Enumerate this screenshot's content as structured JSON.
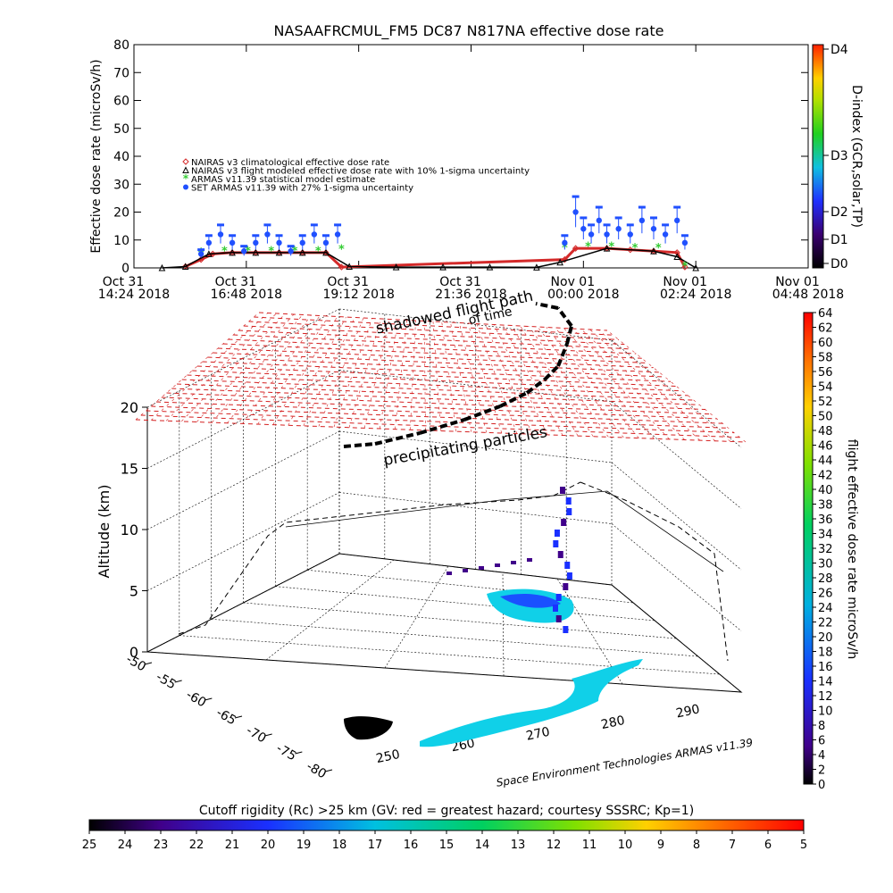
{
  "chart_data": [
    {
      "type": "scatter",
      "title": "NASAAFRCMUL_FM5 DC87 N817NA effective dose rate",
      "ylabel": "Effective dose rate (microSv/h)",
      "ylim": [
        0,
        80
      ],
      "yticks": [
        "0",
        "10",
        "20",
        "30",
        "40",
        "50",
        "60",
        "70",
        "80"
      ],
      "xticks": [
        {
          "line1": "Oct 31",
          "line2": "14:24 2018"
        },
        {
          "line1": "Oct 31",
          "line2": "16:48 2018"
        },
        {
          "line1": "Oct 31",
          "line2": "19:12 2018"
        },
        {
          "line1": "Oct 31",
          "line2": "21:36 2018"
        },
        {
          "line1": "Nov 01",
          "line2": "00:00 2018"
        },
        {
          "line1": "Nov 01",
          "line2": "02:24 2018"
        },
        {
          "line1": "Nov 01",
          "line2": "04:48 2018"
        }
      ],
      "legend_placement": "upper-left",
      "series": [
        {
          "name": "NAIRAS v3 climatological effective dose rate",
          "color": "#d42a2a",
          "marker": "diamond",
          "x": [
            "15:30",
            "15:50",
            "16:05",
            "16:30",
            "17:00",
            "17:30",
            "18:00",
            "18:30",
            "18:50",
            "23:36",
            "23:50",
            "00:30",
            "01:00",
            "01:30",
            "02:00",
            "02:10"
          ],
          "y": [
            0.5,
            3,
            5,
            5.5,
            5.5,
            5.5,
            5.5,
            5.5,
            0.3,
            3,
            7,
            7,
            6.5,
            6,
            5.5,
            0.3
          ]
        },
        {
          "name": "NAIRAS v3 flight modeled effective dose rate with 10% 1-sigma uncertainty",
          "color": "#000000",
          "marker": "triangle",
          "x": [
            "15:00",
            "15:30",
            "16:00",
            "16:30",
            "17:00",
            "17:30",
            "18:00",
            "18:30",
            "19:00",
            "20:00",
            "21:00",
            "22:00",
            "23:00",
            "23:30",
            "00:30",
            "01:30",
            "02:00",
            "02:24"
          ],
          "y": [
            0,
            0.5,
            5,
            5.5,
            5.5,
            5.5,
            5.5,
            5.5,
            0.5,
            0.3,
            0.3,
            0.3,
            0.2,
            2,
            7,
            6,
            4,
            0
          ]
        },
        {
          "name": "ARMAS v11.39 statistical model estimate",
          "color": "#33cc33",
          "marker": "asterisk",
          "x": [
            "15:50",
            "16:20",
            "16:50",
            "17:20",
            "17:50",
            "18:20",
            "18:50",
            "23:36",
            "00:06",
            "00:36",
            "01:06",
            "01:36",
            "02:10"
          ],
          "y": [
            5.5,
            6,
            6,
            6,
            6,
            6,
            6.5,
            7,
            7.5,
            7.5,
            7,
            7,
            0.5
          ]
        },
        {
          "name": "SET ARMAS v11.39 with 27% 1-sigma uncertainty",
          "color": "#2050ff",
          "marker": "dot",
          "x": [
            "15:50",
            "16:00",
            "16:15",
            "16:30",
            "16:45",
            "17:00",
            "17:15",
            "17:30",
            "17:45",
            "18:00",
            "18:15",
            "18:30",
            "18:45",
            "23:36",
            "23:50",
            "00:00",
            "00:10",
            "00:20",
            "00:30",
            "00:45",
            "01:00",
            "01:15",
            "01:30",
            "01:45",
            "02:00",
            "02:10"
          ],
          "y": [
            5,
            9,
            12,
            9,
            6,
            9,
            12,
            9,
            6,
            9,
            12,
            9,
            12,
            9,
            20,
            14,
            12,
            17,
            12,
            14,
            12,
            17,
            14,
            12,
            17,
            9
          ]
        }
      ],
      "colorbar": {
        "label": "D-index (GCR,solar,TP)",
        "ticks": [
          "D4",
          "D3",
          "D2",
          "D1",
          "D0"
        ]
      }
    },
    {
      "type": "scatter",
      "kind": "3d-flight-track",
      "zlabel": "Altitude (km)",
      "zticks": [
        "0",
        "5",
        "10",
        "15",
        "20"
      ],
      "yticks": [
        "-80",
        "-75",
        "-70",
        "-65",
        "-60",
        "-55",
        "-50"
      ],
      "xticks": [
        "250",
        "260",
        "270",
        "280",
        "290"
      ],
      "annotations": [
        "shadowed flight path",
        "of time",
        "precipitating particles"
      ],
      "colorbar": {
        "label": "flight effective dose rate microSv/h",
        "min": 0,
        "max": 64,
        "ticks": [
          "0",
          "2",
          "4",
          "6",
          "8",
          "10",
          "12",
          "14",
          "16",
          "18",
          "20",
          "22",
          "24",
          "26",
          "28",
          "30",
          "32",
          "34",
          "36",
          "38",
          "40",
          "42",
          "44",
          "46",
          "48",
          "50",
          "52",
          "54",
          "56",
          "58",
          "60",
          "62",
          "64"
        ]
      },
      "footer": "Space Environment Technologies ARMAS v11.39"
    },
    {
      "type": "heatmap",
      "kind": "horizontal-colorbar",
      "label": "Cutoff rigidity (Rc) >25 km (GV: red = greatest hazard; courtesy SSSRC; Kp=1)",
      "ticks": [
        "25",
        "24",
        "23",
        "22",
        "21",
        "20",
        "19",
        "18",
        "17",
        "16",
        "15",
        "14",
        "13",
        "12",
        "11",
        "10",
        "9",
        "8",
        "7",
        "6",
        "5"
      ]
    }
  ]
}
